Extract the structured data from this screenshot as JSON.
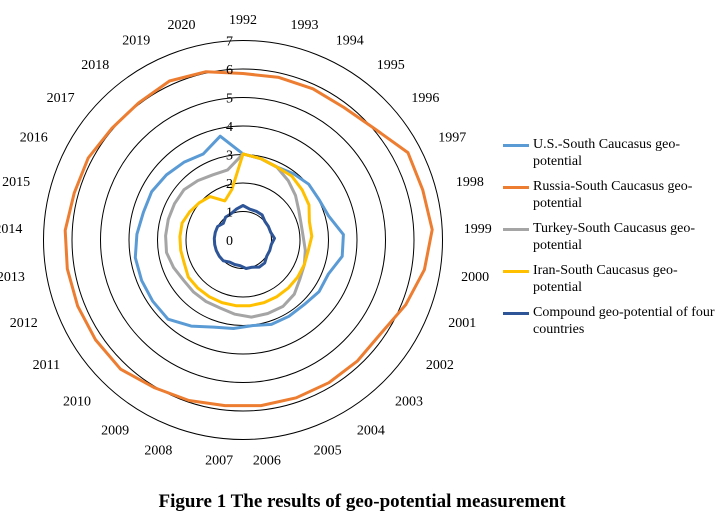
{
  "chart_data": {
    "type": "radar",
    "categories": [
      "1992",
      "1993",
      "1994",
      "1995",
      "1996",
      "1997",
      "1998",
      "1999",
      "2000",
      "2001",
      "2002",
      "2003",
      "2004",
      "2005",
      "2006",
      "2007",
      "2008",
      "2009",
      "2010",
      "2011",
      "2012",
      "2013",
      "2014",
      "2015",
      "2016",
      "2017",
      "2018",
      "2019",
      "2020"
    ],
    "rlim": [
      0,
      7
    ],
    "ring_ticks": [
      "0",
      "1",
      "2",
      "3",
      "4",
      "5",
      "6",
      "7"
    ],
    "grid": true,
    "legend_position": "right",
    "series": [
      {
        "name": "U.S.-South Caucasus geo-potential",
        "color": "#5b9bd5",
        "values": [
          3.0,
          2.9,
          2.8,
          2.9,
          3.0,
          3.0,
          3.1,
          3.5,
          3.5,
          3.2,
          3.2,
          3.1,
          3.1,
          3.1,
          3.0,
          3.1,
          3.2,
          3.5,
          3.8,
          3.8,
          3.8,
          3.8,
          3.7,
          3.6,
          3.6,
          3.5,
          3.4,
          3.3,
          3.7
        ]
      },
      {
        "name": "Russia-South Caucasus geo-potential",
        "color": "#ed7d31",
        "values": [
          5.8,
          5.8,
          5.8,
          5.8,
          6.0,
          6.5,
          6.5,
          6.6,
          6.4,
          6.1,
          5.8,
          5.8,
          5.8,
          5.8,
          5.8,
          5.8,
          5.9,
          6.0,
          6.2,
          6.2,
          6.2,
          6.2,
          6.2,
          6.1,
          6.1,
          6.0,
          6.0,
          6.1,
          6.0
        ]
      },
      {
        "name": "Turkey-South Caucasus geo-potential",
        "color": "#a5a5a5",
        "values": [
          3.0,
          2.9,
          2.8,
          2.6,
          2.4,
          2.2,
          2.1,
          2.1,
          2.2,
          2.3,
          2.4,
          2.6,
          2.7,
          2.7,
          2.7,
          2.6,
          2.5,
          2.5,
          2.5,
          2.5,
          2.6,
          2.7,
          2.7,
          2.7,
          2.7,
          2.7,
          2.6,
          2.5,
          2.5
        ]
      },
      {
        "name": "Iran-South Caucasus geo-potential",
        "color": "#ffc000",
        "values": [
          3.0,
          2.9,
          2.8,
          2.8,
          2.7,
          2.6,
          2.4,
          2.4,
          2.3,
          2.3,
          2.3,
          2.3,
          2.3,
          2.3,
          2.3,
          2.3,
          2.3,
          2.3,
          2.3,
          2.3,
          2.2,
          2.2,
          2.2,
          2.2,
          2.1,
          2.0,
          1.9,
          1.5,
          1.8
        ]
      },
      {
        "name": "Compound geo-potential of four countries",
        "color": "#2e5597",
        "values": [
          1.2,
          1.1,
          1.1,
          1.1,
          1.0,
          1.0,
          1.0,
          1.1,
          1.0,
          1.0,
          1.0,
          1.1,
          1.1,
          1.0,
          1.0,
          0.9,
          0.9,
          0.9,
          1.0,
          1.0,
          1.0,
          1.0,
          1.0,
          1.0,
          1.0,
          0.9,
          1.0,
          1.0,
          1.1
        ]
      }
    ]
  },
  "caption": "Figure 1  The results of geo-potential measurement"
}
